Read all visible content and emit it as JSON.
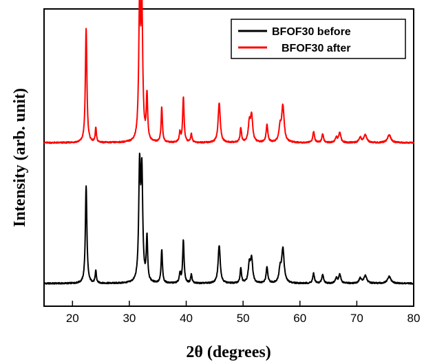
{
  "chart_data": {
    "type": "line",
    "title": "",
    "xlabel": "2θ (degrees)",
    "ylabel": "Intensity (arb. unit)",
    "xlim": [
      15,
      80
    ],
    "xticks": [
      20,
      30,
      40,
      50,
      60,
      70,
      80
    ],
    "xtick_labels": [
      "20",
      "30",
      "40",
      "50",
      "60",
      "70",
      "80"
    ],
    "y_ticks_shown": false,
    "grid": false,
    "legend_position": "top-right",
    "series": [
      {
        "name": "BFOF30 before",
        "color": "#000000",
        "baseline": 0.0,
        "peaks": [
          {
            "x": 22.4,
            "y": 1.0,
            "w": 0.16
          },
          {
            "x": 24.1,
            "y": 0.13,
            "w": 0.12
          },
          {
            "x": 31.8,
            "y": 1.15,
            "w": 0.18
          },
          {
            "x": 32.2,
            "y": 1.08,
            "w": 0.18
          },
          {
            "x": 33.1,
            "y": 0.46,
            "w": 0.14
          },
          {
            "x": 35.7,
            "y": 0.34,
            "w": 0.14
          },
          {
            "x": 38.9,
            "y": 0.1,
            "w": 0.14
          },
          {
            "x": 39.5,
            "y": 0.44,
            "w": 0.15
          },
          {
            "x": 40.9,
            "y": 0.09,
            "w": 0.14
          },
          {
            "x": 45.8,
            "y": 0.39,
            "w": 0.22
          },
          {
            "x": 49.6,
            "y": 0.15,
            "w": 0.15
          },
          {
            "x": 51.1,
            "y": 0.19,
            "w": 0.22
          },
          {
            "x": 51.5,
            "y": 0.24,
            "w": 0.22
          },
          {
            "x": 54.2,
            "y": 0.16,
            "w": 0.18
          },
          {
            "x": 56.5,
            "y": 0.13,
            "w": 0.22
          },
          {
            "x": 57.0,
            "y": 0.35,
            "w": 0.26
          },
          {
            "x": 62.4,
            "y": 0.1,
            "w": 0.18
          },
          {
            "x": 64.0,
            "y": 0.09,
            "w": 0.18
          },
          {
            "x": 66.4,
            "y": 0.05,
            "w": 0.22
          },
          {
            "x": 67.0,
            "y": 0.09,
            "w": 0.22
          },
          {
            "x": 70.6,
            "y": 0.05,
            "w": 0.25
          },
          {
            "x": 71.5,
            "y": 0.08,
            "w": 0.3
          },
          {
            "x": 75.7,
            "y": 0.07,
            "w": 0.35
          }
        ]
      },
      {
        "name": "BFOF30 after",
        "color": "#ff0000",
        "baseline": 1.44,
        "peaks": [
          {
            "x": 22.4,
            "y": 1.17,
            "w": 0.16
          },
          {
            "x": 24.1,
            "y": 0.15,
            "w": 0.12
          },
          {
            "x": 31.8,
            "y": 1.35,
            "w": 0.18
          },
          {
            "x": 32.2,
            "y": 1.3,
            "w": 0.18
          },
          {
            "x": 33.1,
            "y": 0.47,
            "w": 0.14
          },
          {
            "x": 35.7,
            "y": 0.36,
            "w": 0.14
          },
          {
            "x": 38.9,
            "y": 0.1,
            "w": 0.14
          },
          {
            "x": 39.5,
            "y": 0.46,
            "w": 0.15
          },
          {
            "x": 40.9,
            "y": 0.09,
            "w": 0.14
          },
          {
            "x": 45.8,
            "y": 0.41,
            "w": 0.22
          },
          {
            "x": 49.6,
            "y": 0.15,
            "w": 0.15
          },
          {
            "x": 51.1,
            "y": 0.19,
            "w": 0.22
          },
          {
            "x": 51.5,
            "y": 0.27,
            "w": 0.22
          },
          {
            "x": 54.2,
            "y": 0.18,
            "w": 0.18
          },
          {
            "x": 56.5,
            "y": 0.14,
            "w": 0.22
          },
          {
            "x": 57.0,
            "y": 0.37,
            "w": 0.26
          },
          {
            "x": 62.4,
            "y": 0.11,
            "w": 0.18
          },
          {
            "x": 64.0,
            "y": 0.09,
            "w": 0.18
          },
          {
            "x": 66.4,
            "y": 0.05,
            "w": 0.22
          },
          {
            "x": 67.0,
            "y": 0.1,
            "w": 0.22
          },
          {
            "x": 70.6,
            "y": 0.05,
            "w": 0.25
          },
          {
            "x": 71.5,
            "y": 0.08,
            "w": 0.3
          },
          {
            "x": 75.7,
            "y": 0.08,
            "w": 0.35
          }
        ]
      }
    ]
  }
}
